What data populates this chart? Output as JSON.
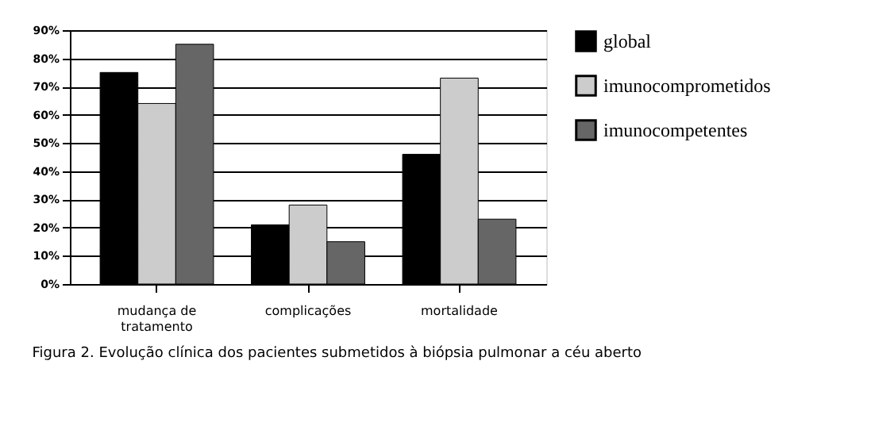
{
  "chart_data": {
    "type": "bar",
    "categories": [
      "mudança de tratamento",
      "complicações",
      "mortalidade"
    ],
    "series": [
      {
        "name": "global",
        "color": "#000000",
        "values": [
          75,
          21,
          46
        ]
      },
      {
        "name": "imunocomprometidos",
        "color": "#cccccc",
        "values": [
          64,
          28,
          73
        ]
      },
      {
        "name": "imunocompetentes",
        "color": "#666666",
        "values": [
          85,
          15,
          23
        ]
      }
    ],
    "ylim": [
      0,
      90
    ],
    "yticks": [
      {
        "value": 0,
        "label": "0%"
      },
      {
        "value": 10,
        "label": "10%"
      },
      {
        "value": 20,
        "label": "20%"
      },
      {
        "value": 30,
        "label": "30%"
      },
      {
        "value": 40,
        "label": "40%"
      },
      {
        "value": 50,
        "label": "50%"
      },
      {
        "value": 60,
        "label": "60%"
      },
      {
        "value": 70,
        "label": "70%"
      },
      {
        "value": 80,
        "label": "80%"
      },
      {
        "value": 90,
        "label": "90%"
      }
    ],
    "grid": "y",
    "legend": "right",
    "annotations": [
      "Figura 2. Evolução clínica dos pacientes submetidos à biópsia pulmonar a céu aberto"
    ]
  }
}
